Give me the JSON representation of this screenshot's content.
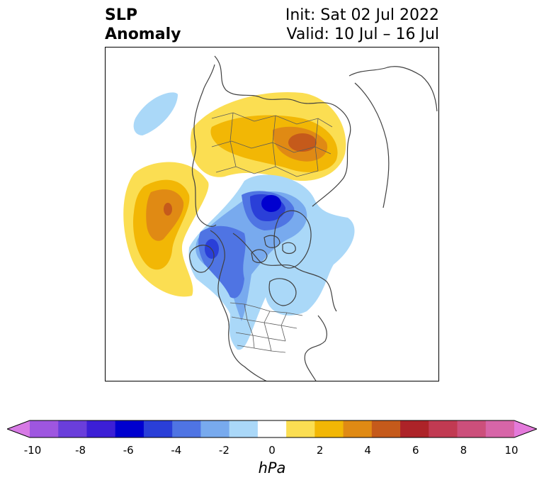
{
  "title": {
    "left_line1": "SLP",
    "left_line2": "Anomaly",
    "right_line1": "Init: Sat 02 Jul 2022",
    "right_line2": "Valid: 10 Jul – 16 Jul"
  },
  "colorbar": {
    "units": "hPa",
    "tick_labels": [
      "-10",
      "-8",
      "-6",
      "-4",
      "-2",
      "0",
      "2",
      "4",
      "6",
      "8",
      "10"
    ],
    "colors": [
      "#d77ae5",
      "#9e56e0",
      "#6a3edb",
      "#3c1fd6",
      "#0000cf",
      "#2a3fd8",
      "#4f74e3",
      "#78aaee",
      "#aad8f8",
      "#ffffff",
      "#fbde52",
      "#f2b705",
      "#e08a14",
      "#c55a1b",
      "#ad2328",
      "#c13a52",
      "#cc4f7b",
      "#d765a8",
      "#e47adb"
    ]
  },
  "map": {
    "projection": "north-polar-stereographic",
    "region": "Northern Hemisphere",
    "features": [
      {
        "sign": "positive",
        "region": "North Pacific",
        "peak_hpa": 6
      },
      {
        "sign": "positive",
        "region": "Northern Eurasia",
        "peak_hpa": 6
      },
      {
        "sign": "negative",
        "region": "Arctic Ocean",
        "peak_hpa": -6
      },
      {
        "sign": "negative",
        "region": "Western Canada",
        "peak_hpa": -4
      }
    ]
  }
}
